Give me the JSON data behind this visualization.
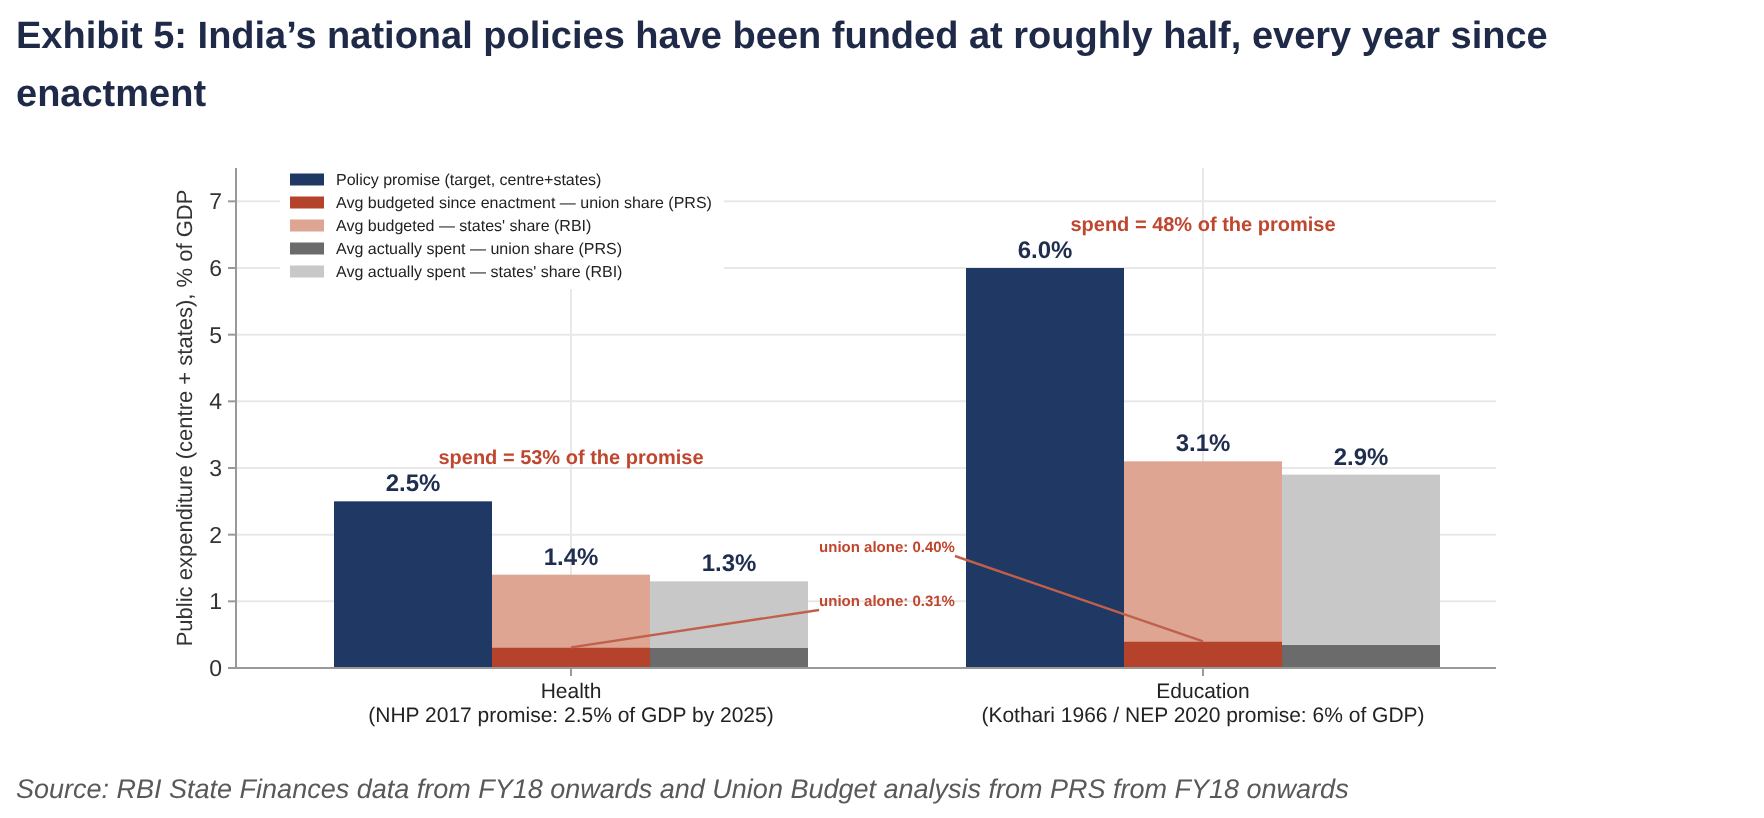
{
  "chart_data": {
    "type": "bar",
    "title": "Exhibit 5: India’s national policies have been funded at roughly half, every year since enactment",
    "ylabel": "Public expenditure (centre + states), % of GDP",
    "categories": [
      null,
      "Health\n(NHP 2017 promise: 2.5% of GDP by 2025)",
      null,
      null,
      null,
      "Education\n(Kothari 1966 / NEP 2020 promise: 6% of GDP)",
      null
    ],
    "series": [
      {
        "name": "Policy promise (target, centre+states)",
        "color": "#203864",
        "values": [
          2.5,
          null,
          null,
          null,
          6.0,
          null,
          null
        ]
      },
      {
        "name": "Avg budgeted since enactment — union share (PRS)",
        "color": "#b5432b",
        "values": [
          null,
          0.31,
          null,
          null,
          null,
          0.4,
          null
        ]
      },
      {
        "name": "Avg budgeted — states' share (RBI)",
        "color": "#dea593",
        "values": [
          null,
          1.09,
          null,
          null,
          null,
          2.7,
          null
        ]
      },
      {
        "name": "Avg actually spent — union share (PRS)",
        "color": "#6b6b6b",
        "values": [
          null,
          null,
          0.3,
          null,
          null,
          null,
          0.35
        ]
      },
      {
        "name": "Avg actually spent — states' share (RBI)",
        "color": "#c8c8c8",
        "values": [
          null,
          null,
          1.0,
          null,
          null,
          null,
          2.55
        ]
      }
    ],
    "stacked": true,
    "ylim": [
      0,
      7.5
    ],
    "yticks": [
      0,
      1,
      2,
      3,
      4,
      5,
      6,
      7
    ],
    "grid": true,
    "legend": "top left",
    "totals": [
      "2.5%",
      "1.4%",
      "1.3%",
      null,
      "6.0%",
      "3.1%",
      "2.9%"
    ],
    "annotations": [
      "spend = 53% of the promise",
      "spend = 48% of the promise",
      {
        "text": "union alone: 0.31%",
        "x": "Health\n(NHP 2017 promise: 2.5% of GDP by 2025)",
        "y": 0.31
      },
      {
        "text": "union alone: 0.40%",
        "x": "Education\n(Kothari 1966 / NEP 2020 promise: 6% of GDP)",
        "y": 0.4
      },
      "Source: RBI State Finances data from FY18 onwards and Union Budget analysis from PRS from FY18 onwards"
    ]
  }
}
